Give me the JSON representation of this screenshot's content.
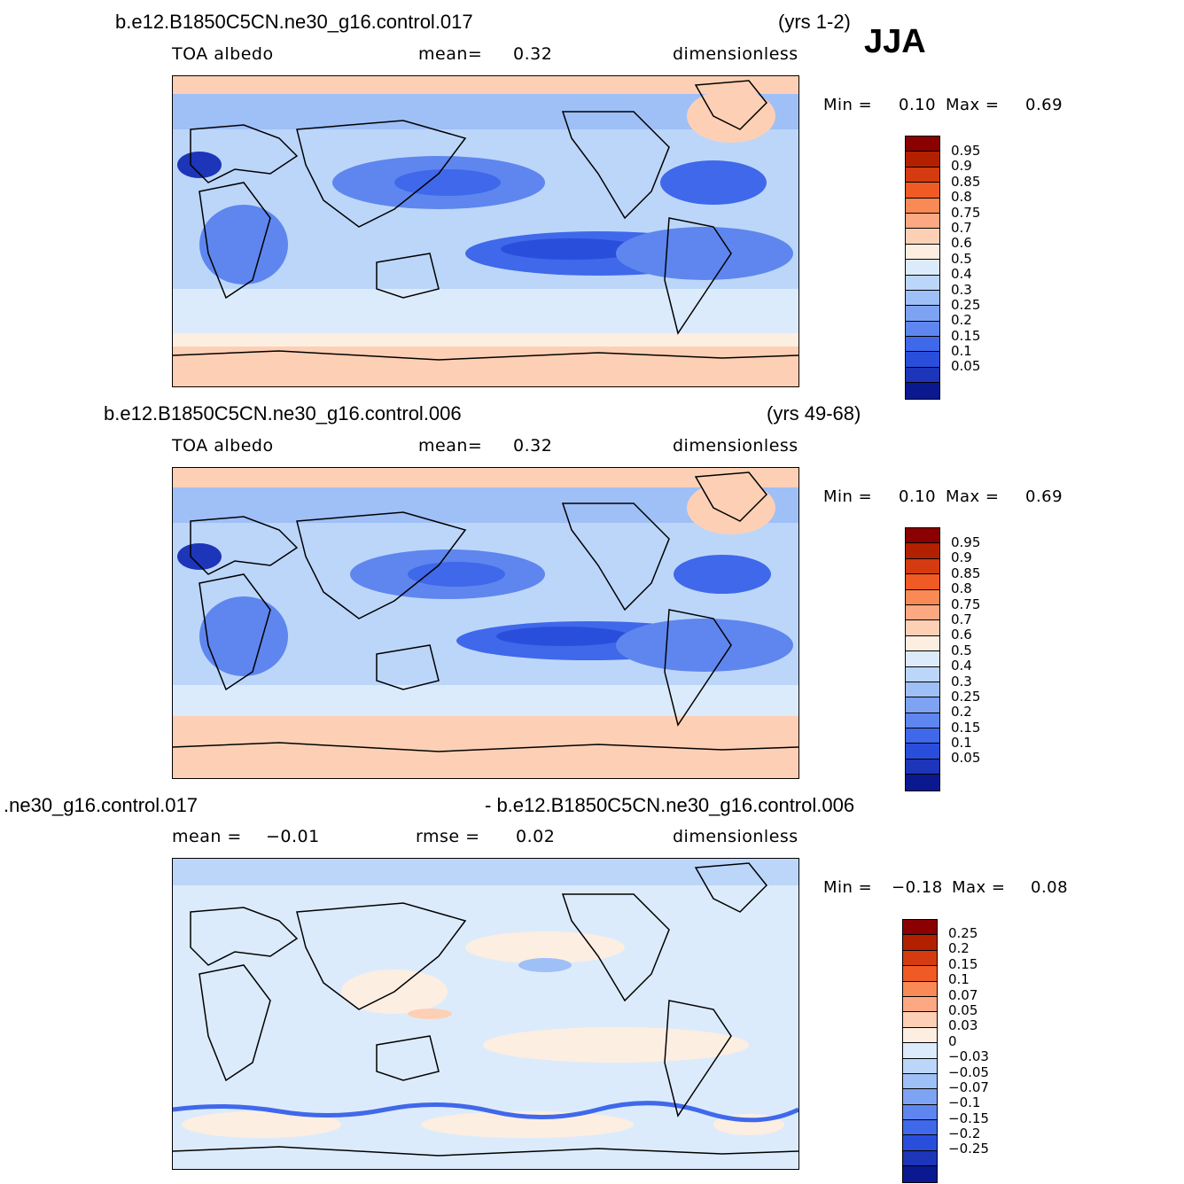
{
  "season": "JJA",
  "panels": [
    {
      "case": "b.e12.B1850C5CN.ne30_g16.control.017",
      "years": "(yrs 1-2)",
      "variable": "TOA  albedo",
      "mean_label": "mean=",
      "mean_value": "0.32",
      "units": "dimensionless",
      "min_label": "Min =",
      "min_value": "0.10",
      "max_label": "Max =",
      "max_value": "0.69",
      "levels": [
        "0.95",
        "0.9",
        "0.85",
        "0.8",
        "0.75",
        "0.7",
        "0.6",
        "0.5",
        "0.4",
        "0.3",
        "0.25",
        "0.2",
        "0.15",
        "0.1",
        "0.05"
      ]
    },
    {
      "case": "b.e12.B1850C5CN.ne30_g16.control.006",
      "years": "(yrs 49-68)",
      "variable": "TOA  albedo",
      "mean_label": "mean=",
      "mean_value": "0.32",
      "units": "dimensionless",
      "min_label": "Min =",
      "min_value": "0.10",
      "max_label": "Max =",
      "max_value": "0.69",
      "levels": [
        "0.95",
        "0.9",
        "0.85",
        "0.8",
        "0.75",
        "0.7",
        "0.6",
        "0.5",
        "0.4",
        "0.3",
        "0.25",
        "0.2",
        "0.15",
        "0.1",
        "0.05"
      ]
    },
    {
      "case_left": ".ne30_g16.control.017",
      "case_right": "- b.e12.B1850C5CN.ne30_g16.control.006",
      "mean_label": "mean =",
      "mean_value": "−0.01",
      "rmse_label": "rmse =",
      "rmse_value": "0.02",
      "units": "dimensionless",
      "min_label": "Min =",
      "min_value": "−0.18",
      "max_label": "Max =",
      "max_value": "0.08",
      "levels": [
        "0.25",
        "0.2",
        "0.15",
        "0.1",
        "0.07",
        "0.05",
        "0.03",
        "0",
        "−0.03",
        "−0.05",
        "−0.07",
        "−0.1",
        "−0.15",
        "−0.2",
        "−0.25"
      ]
    }
  ],
  "colors": {
    "abs_scale": [
      "#8b0000",
      "#b32000",
      "#d43b10",
      "#f05a25",
      "#fa8a55",
      "#fca882",
      "#fdd0b5",
      "#fdeee2",
      "#dcebfb",
      "#bcd6fa",
      "#9fbff7",
      "#7ea3f3",
      "#5e86ee",
      "#3f68ea",
      "#2a4edc",
      "#1d35b8",
      "#0a1990"
    ],
    "diff_scale": [
      "#8b0000",
      "#b32000",
      "#d43b10",
      "#f05a25",
      "#fa8a55",
      "#fca882",
      "#fdd0b5",
      "#fdeee2",
      "#dcebfb",
      "#bcd6fa",
      "#9fbff7",
      "#7ea3f3",
      "#5e86ee",
      "#3f68ea",
      "#2a4edc",
      "#1d35b8",
      "#0a1990"
    ]
  }
}
